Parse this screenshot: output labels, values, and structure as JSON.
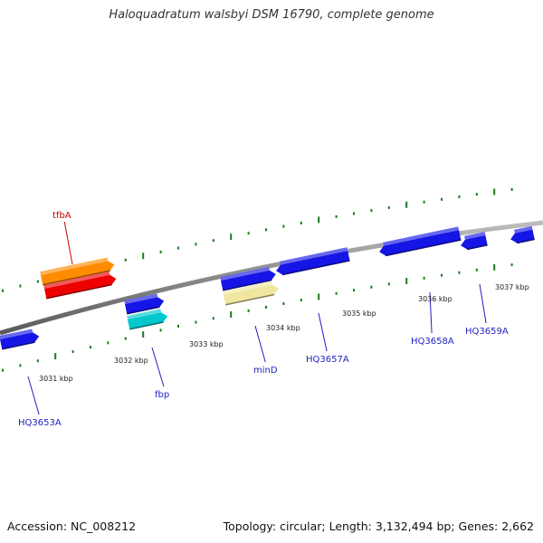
{
  "title": "Haloquadratum walsbyi DSM 16790, complete genome",
  "footer": {
    "accession": "Accession: NC_008212",
    "topology": "Topology: circular; Length: 3,132,494 bp; Genes: 2,662"
  },
  "colors": {
    "backbone": "#8a8a8a",
    "ticks": "#1a7a1a",
    "gene_default": "#1515e6",
    "label_default": "#1f1fbf",
    "label_highlight": "#cc0000"
  },
  "scale_labels": [
    "3031 kbp",
    "3032 kbp",
    "3033 kbp",
    "3034 kbp",
    "3035 kbp",
    "3036 kbp",
    "3037 kbp"
  ],
  "genes": [
    {
      "id": "HQ3653A",
      "label": "HQ3653A",
      "color": "#1515e6",
      "labeled": true
    },
    {
      "id": "tfbA",
      "label": "tfbA",
      "color": "#ff8c00",
      "labeled": true,
      "highlight": true
    },
    {
      "id": "tfbA-2",
      "label": "",
      "color": "#ee0000",
      "labeled": false
    },
    {
      "id": "HQ3654",
      "label": "",
      "color": "#1515e6",
      "labeled": false
    },
    {
      "id": "fbp",
      "label": "fbp",
      "color": "#00c8cc",
      "labeled": true
    },
    {
      "id": "minD",
      "label": "minD",
      "color": "#f0e6a0",
      "labeled": true
    },
    {
      "id": "HQ3656",
      "label": "",
      "color": "#1515e6",
      "labeled": false
    },
    {
      "id": "HQ3657A",
      "label": "HQ3657A",
      "color": "#1515e6",
      "labeled": true
    },
    {
      "id": "HQ3658A",
      "label": "HQ3658A",
      "color": "#1515e6",
      "labeled": true
    },
    {
      "id": "HQ3659A",
      "label": "HQ3659A",
      "color": "#1515e6",
      "labeled": true
    },
    {
      "id": "HQ3660",
      "label": "",
      "color": "#1515e6",
      "labeled": false
    }
  ]
}
